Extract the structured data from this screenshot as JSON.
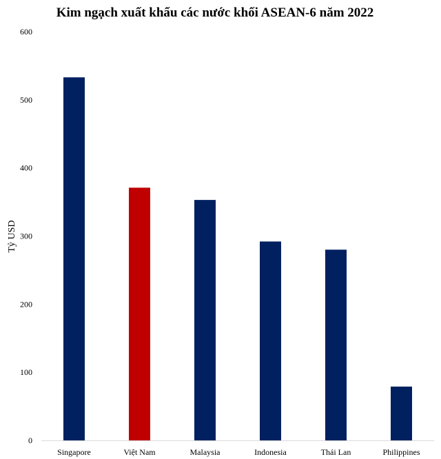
{
  "chart_data": {
    "type": "bar",
    "title": "Kim ngạch xuất khẩu các nước khối ASEAN-6 năm 2022",
    "xlabel": "",
    "ylabel": "Tỷ USD",
    "ylim": [
      0,
      600
    ],
    "yticks": [
      0,
      100,
      200,
      300,
      400,
      500,
      600
    ],
    "categories": [
      "Singapore",
      "Việt Nam",
      "Malaysia",
      "Indonesia",
      "Thái Lan",
      "Philippines"
    ],
    "values": [
      533,
      371,
      353,
      292,
      280,
      79
    ],
    "colors": [
      "#002060",
      "#C00000",
      "#002060",
      "#002060",
      "#002060",
      "#002060"
    ],
    "grid": false,
    "legend": "none"
  }
}
